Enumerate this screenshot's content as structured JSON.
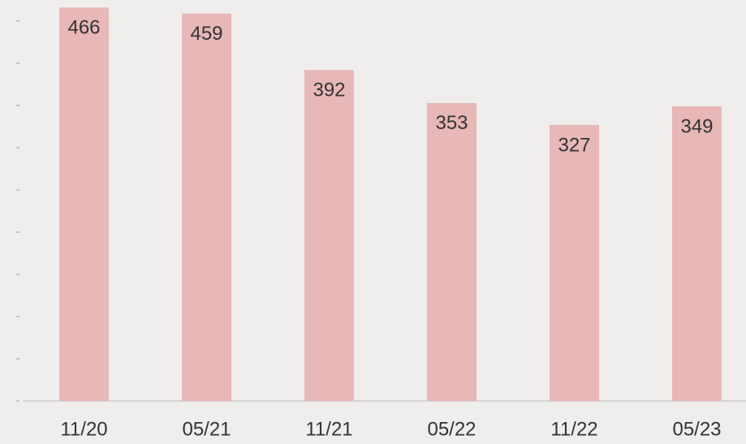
{
  "chart_data": {
    "type": "bar",
    "categories": [
      "11/20",
      "05/21",
      "11/21",
      "05/22",
      "11/22",
      "05/23"
    ],
    "values": [
      466,
      459,
      392,
      353,
      327,
      349
    ],
    "color": "#e8b7b7",
    "ylim": [
      0,
      475
    ],
    "yticks": [
      0,
      50,
      100,
      150,
      200,
      250,
      300,
      350,
      400,
      450
    ]
  }
}
